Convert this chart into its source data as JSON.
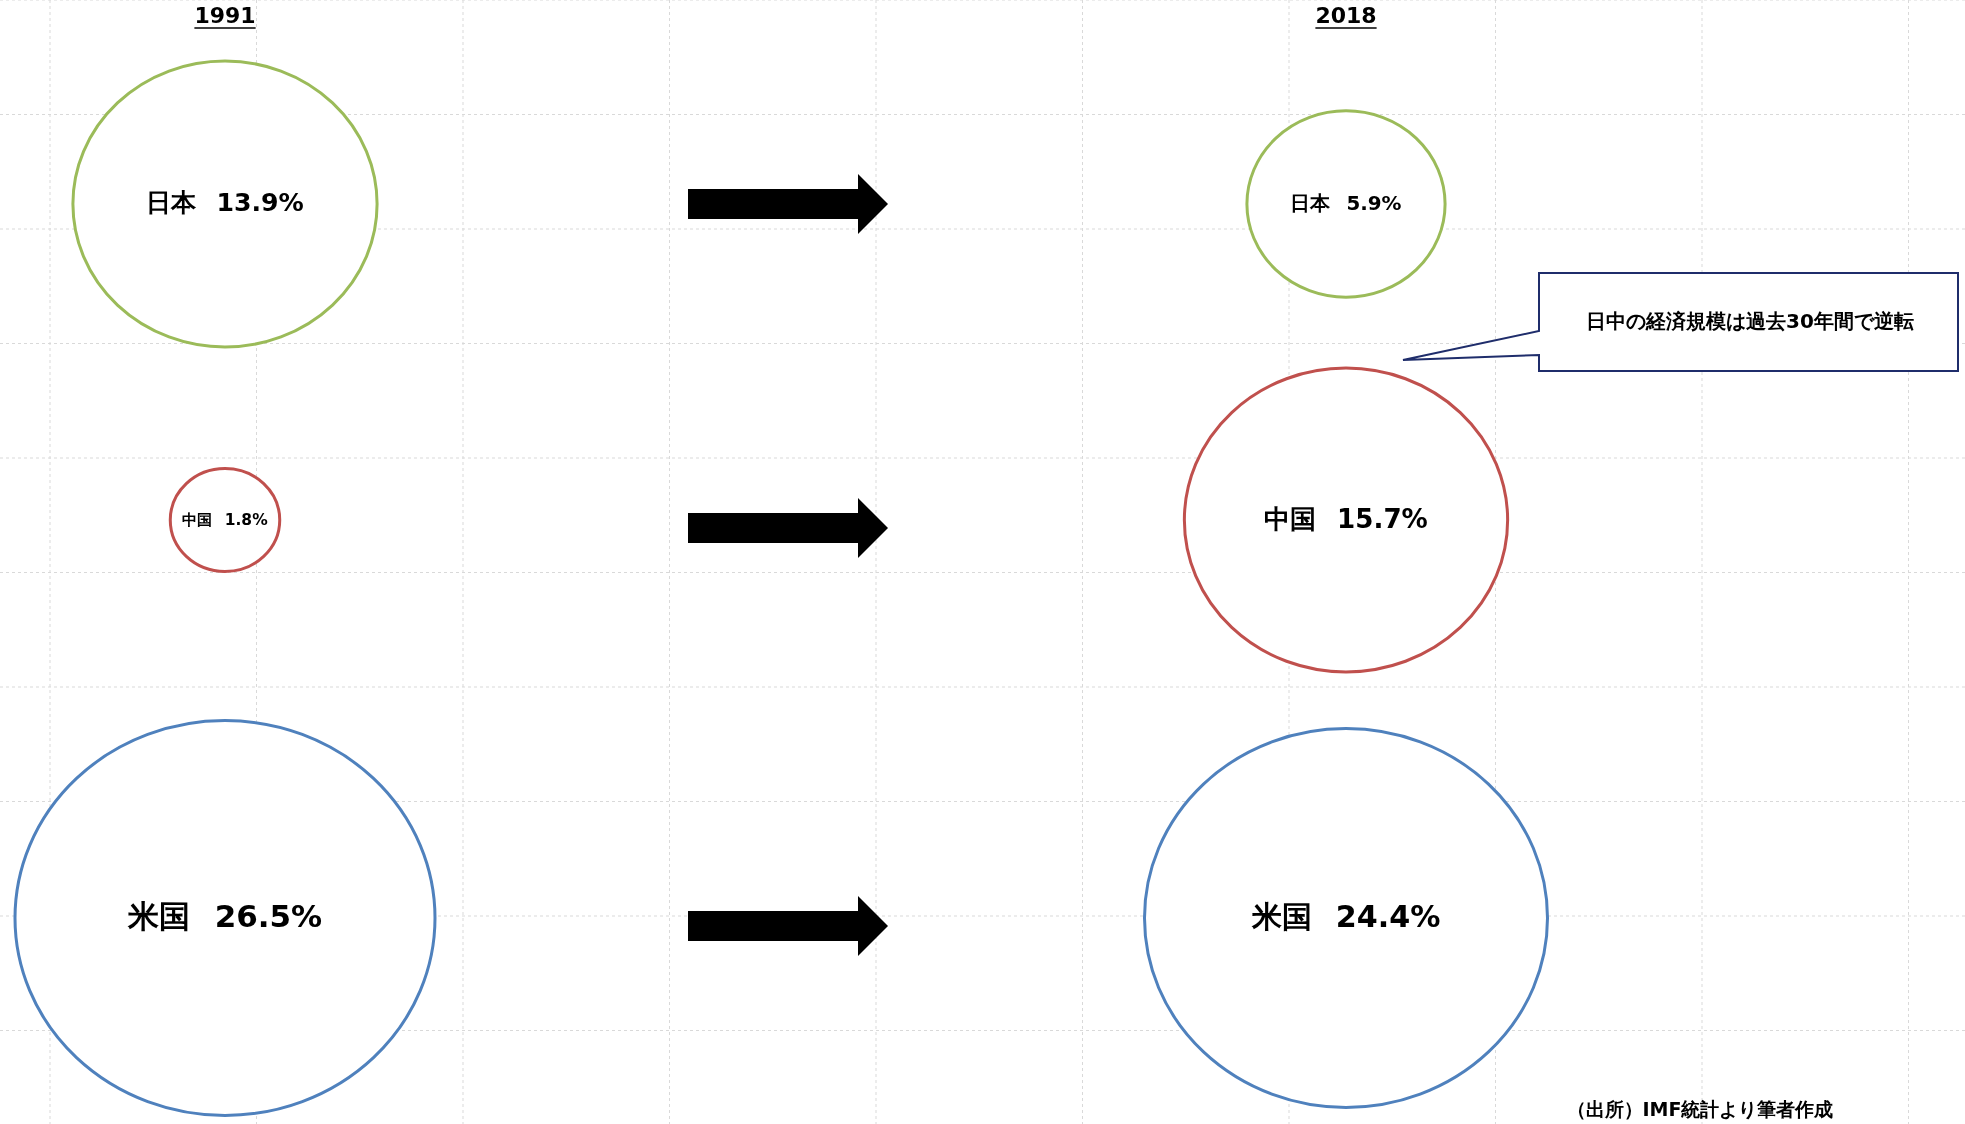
{
  "chart_data": {
    "type": "other",
    "categories": [
      "1991",
      "2018"
    ],
    "series": [
      {
        "name": "日本",
        "color": "#9bbb59",
        "values": [
          13.9,
          5.9
        ],
        "value_labels": [
          "13.9%",
          "5.9%"
        ]
      },
      {
        "name": "中国",
        "color": "#c0504d",
        "values": [
          1.8,
          15.7
        ],
        "value_labels": [
          "1.8%",
          "15.7%"
        ]
      },
      {
        "name": "米国",
        "color": "#4f81bd",
        "values": [
          26.5,
          24.4
        ],
        "value_labels": [
          "26.5%",
          "24.4%"
        ]
      }
    ],
    "annotations": [
      "日中の経済規模は過去30年間で逆転",
      "（出所）IMF統計より筆者作成"
    ]
  }
}
